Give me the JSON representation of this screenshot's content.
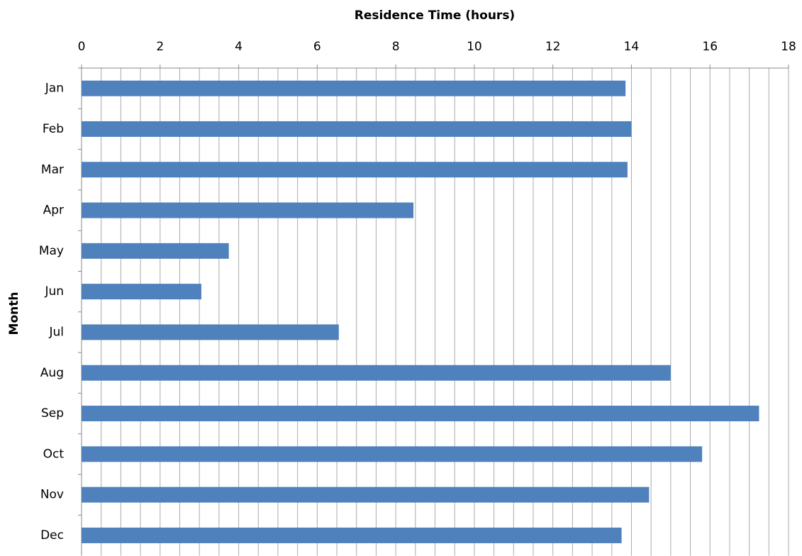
{
  "chart_data": {
    "type": "bar",
    "orientation": "horizontal",
    "x_label": "Residence Time (hours)",
    "y_label": "Month",
    "categories": [
      "Jan",
      "Feb",
      "Mar",
      "Apr",
      "May",
      "Jun",
      "Jul",
      "Aug",
      "Sep",
      "Oct",
      "Nov",
      "Dec"
    ],
    "values": [
      13.85,
      14.0,
      13.9,
      8.45,
      3.75,
      3.05,
      6.55,
      15.0,
      17.25,
      15.8,
      14.45,
      13.75
    ],
    "color": "#4f81bd",
    "xlim": [
      0,
      18
    ],
    "xticks": [
      0,
      2,
      4,
      6,
      8,
      10,
      12,
      14,
      16,
      18
    ],
    "grid": true,
    "minor_grid_step": 0.5
  }
}
